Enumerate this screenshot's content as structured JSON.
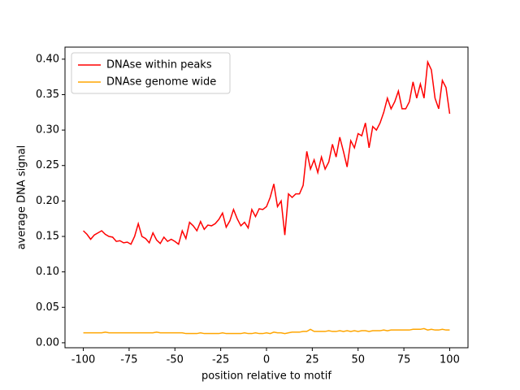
{
  "chart_data": {
    "type": "line",
    "xlabel": "position relative to motif",
    "ylabel": "average DNA signal",
    "x": [
      -100,
      -98,
      -96,
      -94,
      -92,
      -90,
      -88,
      -86,
      -84,
      -82,
      -80,
      -78,
      -76,
      -74,
      -72,
      -70,
      -68,
      -66,
      -64,
      -62,
      -60,
      -58,
      -56,
      -54,
      -52,
      -50,
      -48,
      -46,
      -44,
      -42,
      -40,
      -38,
      -36,
      -34,
      -32,
      -30,
      -28,
      -26,
      -24,
      -22,
      -20,
      -18,
      -16,
      -14,
      -12,
      -10,
      -8,
      -6,
      -4,
      -2,
      0,
      2,
      4,
      6,
      8,
      10,
      12,
      14,
      16,
      18,
      20,
      22,
      24,
      26,
      28,
      30,
      32,
      34,
      36,
      38,
      40,
      42,
      44,
      46,
      48,
      50,
      52,
      54,
      56,
      58,
      60,
      62,
      64,
      66,
      68,
      70,
      72,
      74,
      76,
      78,
      80,
      82,
      84,
      86,
      88,
      90,
      92,
      94,
      96,
      98,
      100
    ],
    "series": [
      {
        "name": "DNAse within peaks",
        "color": "#ff0000",
        "values": [
          0.158,
          0.153,
          0.146,
          0.152,
          0.155,
          0.158,
          0.153,
          0.15,
          0.149,
          0.143,
          0.144,
          0.141,
          0.142,
          0.139,
          0.15,
          0.168,
          0.15,
          0.147,
          0.141,
          0.155,
          0.145,
          0.14,
          0.149,
          0.143,
          0.146,
          0.143,
          0.139,
          0.158,
          0.147,
          0.17,
          0.165,
          0.158,
          0.171,
          0.16,
          0.166,
          0.165,
          0.168,
          0.174,
          0.183,
          0.163,
          0.172,
          0.188,
          0.175,
          0.165,
          0.17,
          0.162,
          0.188,
          0.178,
          0.189,
          0.188,
          0.192,
          0.205,
          0.224,
          0.192,
          0.2,
          0.152,
          0.21,
          0.205,
          0.21,
          0.21,
          0.222,
          0.27,
          0.245,
          0.258,
          0.24,
          0.262,
          0.245,
          0.255,
          0.28,
          0.262,
          0.29,
          0.27,
          0.248,
          0.285,
          0.275,
          0.295,
          0.292,
          0.31,
          0.275,
          0.305,
          0.3,
          0.31,
          0.325,
          0.345,
          0.33,
          0.34,
          0.355,
          0.33,
          0.33,
          0.34,
          0.368,
          0.345,
          0.365,
          0.345,
          0.396,
          0.385,
          0.345,
          0.33,
          0.37,
          0.36,
          0.323
        ]
      },
      {
        "name": "DNAse genome wide",
        "color": "#ffa500",
        "values": [
          0.014,
          0.014,
          0.014,
          0.014,
          0.014,
          0.014,
          0.015,
          0.014,
          0.014,
          0.014,
          0.014,
          0.014,
          0.014,
          0.014,
          0.014,
          0.014,
          0.014,
          0.014,
          0.014,
          0.014,
          0.015,
          0.014,
          0.014,
          0.014,
          0.014,
          0.014,
          0.014,
          0.014,
          0.013,
          0.013,
          0.013,
          0.013,
          0.014,
          0.013,
          0.013,
          0.013,
          0.013,
          0.013,
          0.014,
          0.013,
          0.013,
          0.013,
          0.013,
          0.013,
          0.014,
          0.013,
          0.013,
          0.014,
          0.013,
          0.013,
          0.014,
          0.013,
          0.015,
          0.014,
          0.014,
          0.013,
          0.014,
          0.015,
          0.015,
          0.015,
          0.016,
          0.016,
          0.019,
          0.016,
          0.016,
          0.016,
          0.016,
          0.017,
          0.016,
          0.016,
          0.017,
          0.016,
          0.017,
          0.016,
          0.017,
          0.016,
          0.017,
          0.017,
          0.016,
          0.017,
          0.017,
          0.017,
          0.018,
          0.017,
          0.018,
          0.018,
          0.018,
          0.018,
          0.018,
          0.018,
          0.019,
          0.019,
          0.019,
          0.02,
          0.018,
          0.019,
          0.018,
          0.018,
          0.019,
          0.018,
          0.018
        ]
      }
    ],
    "xlim": [
      -110,
      110
    ],
    "xticks": [
      -100,
      -75,
      -50,
      -25,
      0,
      25,
      50,
      75,
      100
    ],
    "ylim": [
      -0.007,
      0.417
    ],
    "yticks": [
      {
        "value": 0,
        "label": "0.00"
      },
      0.05,
      {
        "value": 0.1,
        "label": "0.10"
      },
      0.15,
      {
        "value": 0.2,
        "label": "0.20"
      },
      0.25,
      {
        "value": 0.3,
        "label": "0.30"
      },
      0.35,
      {
        "value": 0.4,
        "label": "0.40"
      }
    ],
    "legend": "upper left"
  }
}
